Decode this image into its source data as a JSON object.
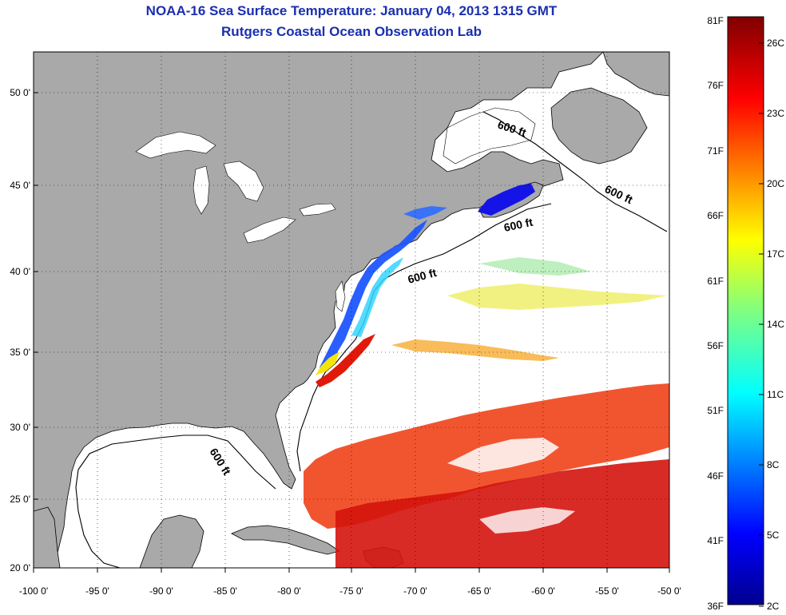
{
  "title": "NOAA-16 Sea Surface Temperature:  January 04, 2013 1315 GMT",
  "subtitle": "Rutgers Coastal Ocean Observation Lab",
  "lat_labels": [
    "50 0'",
    "45 0'",
    "40 0'",
    "35 0'",
    "30 0'",
    "25 0'",
    "20 0'"
  ],
  "lon_labels": [
    "-100 0'",
    "-95 0'",
    "-90 0'",
    "-85 0'",
    "-80 0'",
    "-75 0'",
    "-70 0'",
    "-65 0'",
    "-60 0'",
    "-55 0'",
    "-50 0'"
  ],
  "contour_label": "600 ft",
  "colorbar": {
    "f_labels": [
      "81F",
      "76F",
      "71F",
      "66F",
      "61F",
      "56F",
      "51F",
      "46F",
      "41F",
      "36F"
    ],
    "c_labels": [
      "26C",
      "23C",
      "20C",
      "17C",
      "14C",
      "11C",
      "8C",
      "5C",
      "2C"
    ]
  },
  "colors": {
    "title": "#1a2fb0",
    "land": "#a9a9a9",
    "ocean": "#ffffff"
  }
}
